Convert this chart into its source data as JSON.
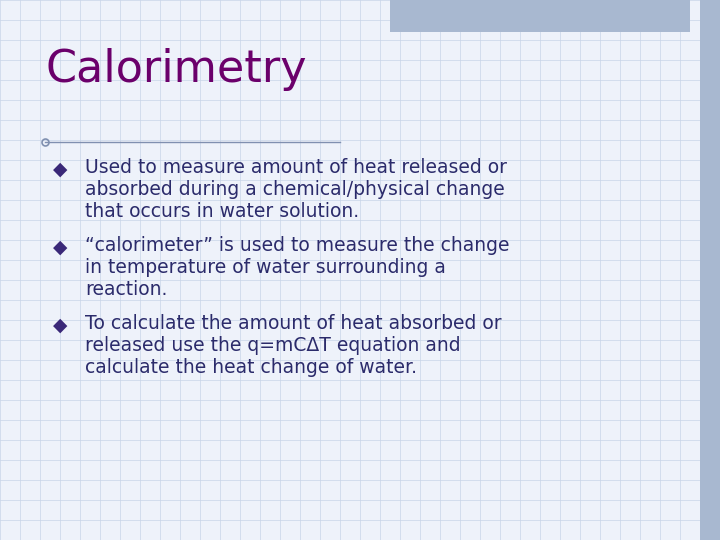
{
  "title": "Calorimetry",
  "title_color": "#6B006B",
  "title_fontsize": 32,
  "body_color": "#2B2B6B",
  "body_fontsize": 13.5,
  "background_color": "#EEF2FA",
  "grid_color": "#C8D4E8",
  "accent_top_color": "#A8B8D0",
  "accent_right_color": "#A8B8D0",
  "bullet_color": "#3A2878",
  "bullet_char": "◆",
  "line_color": "#8090B0",
  "bullets": [
    {
      "lines": [
        "Used to measure amount of heat released or",
        "absorbed during a chemical/physical change",
        "that occurs in water solution."
      ]
    },
    {
      "lines": [
        "“calorimeter” is used to measure the change",
        "in temperature of water surrounding a",
        "reaction."
      ]
    },
    {
      "lines": [
        "To calculate the amount of heat absorbed or",
        "released use the q=mCΔT equation and",
        "calculate the heat change of water."
      ]
    }
  ]
}
